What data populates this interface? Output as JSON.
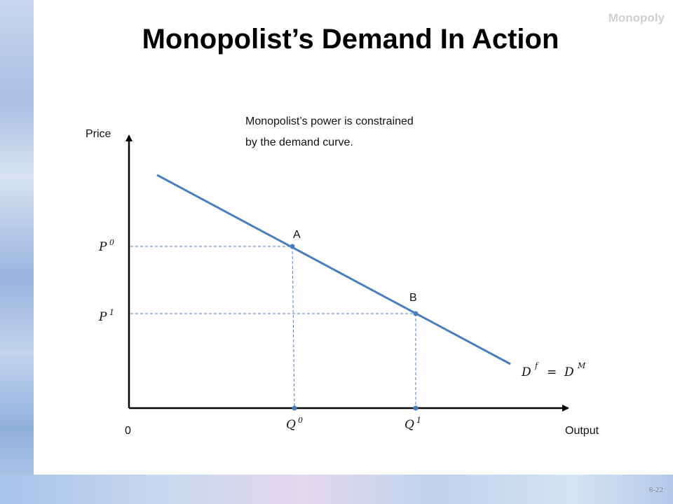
{
  "slide": {
    "title": "Monopolist’s Demand In Action",
    "section_label": "Monopoly",
    "page_number": "8-22"
  },
  "diagram": {
    "annotation_line1": "Monopolist’s power is constrained",
    "annotation_line2": "by the demand curve.",
    "y_axis_label": "Price",
    "x_axis_label": "Output",
    "origin_label": "0",
    "point_a_label": "A",
    "point_b_label": "B",
    "p0_base": "P",
    "p0_sup": "0",
    "p1_base": "P",
    "p1_sup": "1",
    "q0_base": "Q",
    "q0_sup": "0",
    "q1_base": "Q",
    "q1_sup": "1",
    "curve_base1": "D",
    "curve_sup1": "f",
    "curve_equals": "=",
    "curve_base2": "D",
    "curve_sup2": "M"
  },
  "colors": {
    "demand_curve": "#4a7ebb",
    "guide_lines": "#4a7ebb",
    "axes": "#000000"
  }
}
